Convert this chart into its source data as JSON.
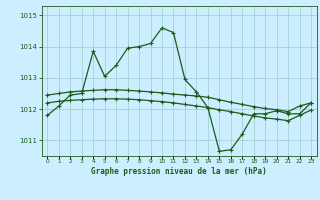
{
  "title": "Graphe pression niveau de la mer (hPa)",
  "background_color": "#cceeff",
  "grid_color": "#99cccc",
  "line_color": "#1a5c1a",
  "ylim": [
    1010.5,
    1015.3
  ],
  "yticks": [
    1011,
    1012,
    1013,
    1014,
    1015
  ],
  "xticks": [
    0,
    1,
    2,
    3,
    4,
    5,
    6,
    7,
    8,
    9,
    10,
    11,
    12,
    13,
    14,
    15,
    16,
    17,
    18,
    19,
    20,
    21,
    22,
    23
  ],
  "line_main": [
    1011.8,
    1012.1,
    1012.45,
    1012.5,
    1013.85,
    1013.05,
    1013.4,
    1013.95,
    1014.0,
    1014.1,
    1014.6,
    1014.45,
    1012.95,
    1012.55,
    1012.05,
    1010.65,
    1010.7,
    1011.2,
    1011.85,
    1011.85,
    1011.95,
    1011.85,
    1011.85,
    1012.2
  ],
  "line_upper": [
    1012.45,
    1012.5,
    1012.55,
    1012.58,
    1012.6,
    1012.62,
    1012.62,
    1012.6,
    1012.58,
    1012.55,
    1012.52,
    1012.48,
    1012.45,
    1012.42,
    1012.38,
    1012.3,
    1012.22,
    1012.15,
    1012.08,
    1012.02,
    1011.98,
    1011.92,
    1012.1,
    1012.2
  ],
  "line_lower": [
    1012.2,
    1012.25,
    1012.28,
    1012.3,
    1012.32,
    1012.33,
    1012.33,
    1012.32,
    1012.3,
    1012.27,
    1012.24,
    1012.2,
    1012.15,
    1012.1,
    1012.05,
    1011.98,
    1011.92,
    1011.85,
    1011.78,
    1011.72,
    1011.68,
    1011.63,
    1011.8,
    1011.97
  ]
}
